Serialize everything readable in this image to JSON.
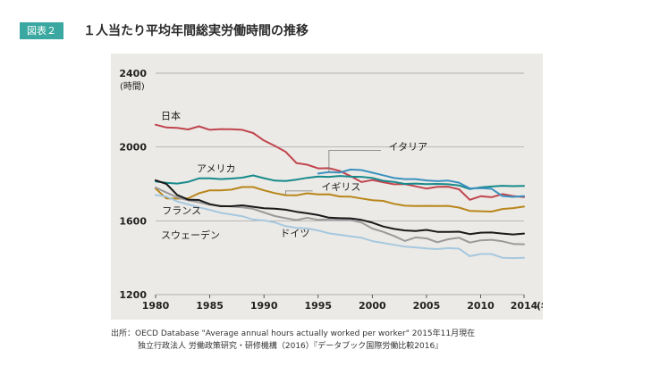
{
  "header": {
    "figure_label": "図表２",
    "title": "１人当たり平均年間総実労働時間の推移"
  },
  "source": {
    "line1": "出所：OECD Database \"Average annual hours actually worked per worker\" 2015年11月現在",
    "line2": "独立行政法人 労働政策研究・研修機構（2016）『データブック国際労働比較2016』"
  },
  "chart_data": {
    "type": "line",
    "title": "",
    "ylabel": "(時間)",
    "xlabel": "(年)",
    "ylim": [
      1200,
      2400
    ],
    "xlim": [
      1980,
      2014
    ],
    "yticks": [
      1200,
      1600,
      2000,
      2400
    ],
    "xticks": [
      1980,
      1985,
      1990,
      1995,
      2000,
      2005,
      2010,
      2014
    ],
    "grid": true,
    "series": [
      {
        "name": "日本",
        "color": "#c0454f",
        "x": [
          1980,
          1981,
          1982,
          1983,
          1984,
          1985,
          1986,
          1987,
          1988,
          1989,
          1990,
          1991,
          1992,
          1993,
          1994,
          1995,
          1996,
          1997,
          1998,
          1999,
          2000,
          2001,
          2002,
          2003,
          2004,
          2005,
          2006,
          2007,
          2008,
          2009,
          2010,
          2011,
          2012,
          2013,
          2014
        ],
        "values": [
          2121,
          2106,
          2104,
          2095,
          2112,
          2093,
          2097,
          2096,
          2093,
          2076,
          2035,
          2006,
          1974,
          1913,
          1904,
          1884,
          1885,
          1870,
          1842,
          1810,
          1821,
          1809,
          1798,
          1799,
          1787,
          1775,
          1784,
          1785,
          1771,
          1714,
          1733,
          1728,
          1745,
          1734,
          1729
        ]
      },
      {
        "name": "アメリカ",
        "color": "#178a8c",
        "x": [
          1980,
          1981,
          1982,
          1983,
          1984,
          1985,
          1986,
          1987,
          1988,
          1989,
          1990,
          1991,
          1992,
          1993,
          1994,
          1995,
          1996,
          1997,
          1998,
          1999,
          2000,
          2001,
          2002,
          2003,
          2004,
          2005,
          2006,
          2007,
          2008,
          2009,
          2010,
          2011,
          2012,
          2013,
          2014
        ],
        "values": [
          1813,
          1806,
          1802,
          1811,
          1830,
          1830,
          1826,
          1829,
          1834,
          1846,
          1831,
          1818,
          1816,
          1823,
          1833,
          1840,
          1838,
          1843,
          1839,
          1838,
          1832,
          1817,
          1811,
          1800,
          1802,
          1799,
          1800,
          1798,
          1792,
          1772,
          1781,
          1786,
          1790,
          1788,
          1789
        ]
      },
      {
        "name": "イタリア",
        "color": "#3a91c0",
        "x": [
          1995,
          1996,
          1997,
          1998,
          1999,
          2000,
          2001,
          2002,
          2003,
          2004,
          2005,
          2006,
          2007,
          2008,
          2009,
          2010,
          2011,
          2012,
          2013,
          2014
        ],
        "values": [
          1856,
          1864,
          1862,
          1878,
          1875,
          1861,
          1847,
          1832,
          1826,
          1826,
          1819,
          1815,
          1818,
          1807,
          1776,
          1777,
          1774,
          1734,
          1730,
          1734
        ]
      },
      {
        "name": "イギリス",
        "color": "#b8861a",
        "x": [
          1980,
          1981,
          1982,
          1983,
          1984,
          1985,
          1986,
          1987,
          1988,
          1989,
          1990,
          1991,
          1992,
          1993,
          1994,
          1995,
          1996,
          1997,
          1998,
          1999,
          2000,
          2001,
          2002,
          2003,
          2004,
          2005,
          2006,
          2007,
          2008,
          2009,
          2010,
          2011,
          2012,
          2013,
          2014
        ],
        "values": [
          1775,
          1721,
          1720,
          1722,
          1749,
          1765,
          1765,
          1769,
          1783,
          1783,
          1765,
          1750,
          1739,
          1738,
          1749,
          1743,
          1744,
          1732,
          1731,
          1721,
          1712,
          1708,
          1692,
          1682,
          1680,
          1681,
          1680,
          1681,
          1672,
          1654,
          1652,
          1650,
          1664,
          1669,
          1677
        ]
      },
      {
        "name": "フランス",
        "color": "#9a9a9a",
        "x": [
          1980,
          1981,
          1982,
          1983,
          1984,
          1985,
          1986,
          1987,
          1988,
          1989,
          1990,
          1991,
          1992,
          1993,
          1994,
          1995,
          1996,
          1997,
          1998,
          1999,
          2000,
          2001,
          2002,
          2003,
          2004,
          2005,
          2006,
          2007,
          2008,
          2009,
          2010,
          2011,
          2012,
          2013,
          2014
        ],
        "values": [
          1780,
          1753,
          1727,
          1711,
          1701,
          1687,
          1681,
          1678,
          1673,
          1665,
          1645,
          1626,
          1614,
          1604,
          1616,
          1605,
          1608,
          1606,
          1604,
          1591,
          1558,
          1540,
          1518,
          1491,
          1510,
          1505,
          1484,
          1500,
          1508,
          1482,
          1494,
          1497,
          1489,
          1475,
          1473
        ]
      },
      {
        "name": "ドイツ",
        "color": "#1a1a1a",
        "x": [
          1980,
          1981,
          1982,
          1983,
          1984,
          1985,
          1986,
          1987,
          1988,
          1989,
          1990,
          1991,
          1992,
          1993,
          1994,
          1995,
          1996,
          1997,
          1998,
          1999,
          2000,
          2001,
          2002,
          2003,
          2004,
          2005,
          2006,
          2007,
          2008,
          2009,
          2010,
          2011,
          2012,
          2013,
          2014
        ],
        "values": [
          1820,
          1800,
          1740,
          1715,
          1713,
          1690,
          1679,
          1679,
          1684,
          1676,
          1668,
          1666,
          1660,
          1649,
          1641,
          1631,
          1617,
          1614,
          1613,
          1605,
          1590,
          1569,
          1556,
          1548,
          1545,
          1551,
          1540,
          1540,
          1541,
          1528,
          1536,
          1537,
          1531,
          1526,
          1531
        ]
      },
      {
        "name": "スウェーデン",
        "color": "#a6c8df",
        "x": [
          1980,
          1981,
          1982,
          1983,
          1984,
          1985,
          1986,
          1987,
          1988,
          1989,
          1990,
          1991,
          1992,
          1993,
          1994,
          1995,
          1996,
          1997,
          1998,
          1999,
          2000,
          2001,
          2002,
          2003,
          2004,
          2005,
          2006,
          2007,
          2008,
          2009,
          2010,
          2011,
          2012,
          2013,
          2014
        ],
        "values": [
          1740,
          1732,
          1705,
          1689,
          1673,
          1659,
          1643,
          1634,
          1625,
          1607,
          1602,
          1591,
          1571,
          1562,
          1558,
          1548,
          1532,
          1524,
          1516,
          1508,
          1490,
          1480,
          1470,
          1460,
          1456,
          1450,
          1447,
          1452,
          1449,
          1408,
          1420,
          1420,
          1400,
          1398,
          1400
        ]
      }
    ]
  }
}
